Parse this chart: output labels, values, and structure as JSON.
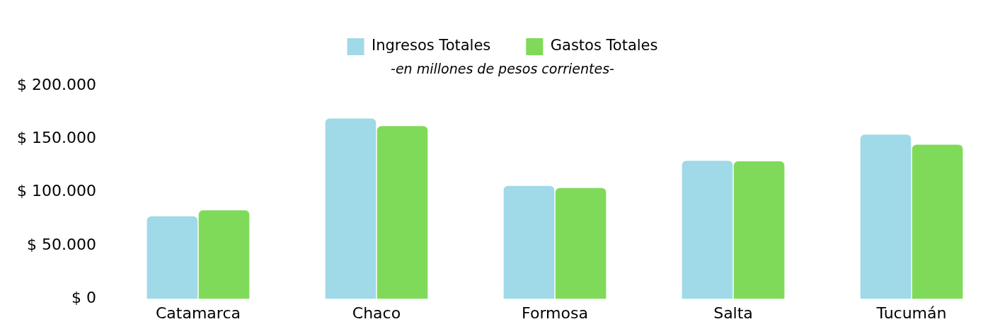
{
  "chart_data": {
    "type": "bar",
    "subtitle": "-en millones de pesos corrientes-",
    "categories": [
      "Catamarca",
      "Chaco",
      "Formosa",
      "Salta",
      "Tucumán"
    ],
    "series": [
      {
        "name": "Ingresos Totales",
        "color": "#a0d9e8",
        "values": [
          77500,
          169000,
          106000,
          129500,
          154000
        ]
      },
      {
        "name": "Gastos Totales",
        "color": "#80da5a",
        "values": [
          83000,
          162000,
          104000,
          129000,
          144500
        ]
      }
    ],
    "ylim": [
      0,
      200000
    ],
    "yticks": [
      {
        "value": 0,
        "label": "$ 0"
      },
      {
        "value": 50000,
        "label": "$ 50.000"
      },
      {
        "value": 100000,
        "label": "$ 100.000"
      },
      {
        "value": 150000,
        "label": "$ 150.000"
      },
      {
        "value": 200000,
        "label": "$ 200.000"
      }
    ],
    "grid": false,
    "legend": "top"
  }
}
